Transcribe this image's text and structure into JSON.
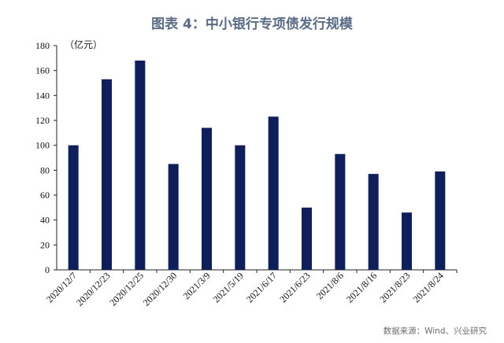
{
  "title": "图表 4：中小银行专项债发行规模",
  "unit": "（亿元）",
  "source": "数据来源：Wind、兴业研究",
  "chart_data": {
    "type": "bar",
    "categories": [
      "2020/12/7",
      "2020/12/23",
      "2020/12/25",
      "2020/12/30",
      "2021/3/9",
      "2021/5/19",
      "2021/6/17",
      "2021/6/23",
      "2021/8/6",
      "2021/8/16",
      "2021/8/23",
      "2021/8/24"
    ],
    "values": [
      100,
      153,
      168,
      85,
      114,
      100,
      123,
      50,
      93,
      77,
      46,
      79
    ],
    "yticks": [
      0,
      20,
      40,
      60,
      80,
      100,
      120,
      140,
      160,
      180
    ],
    "ylim": [
      0,
      180
    ],
    "bar_color": "#0f1f5c",
    "grid": false,
    "legend": "none"
  }
}
